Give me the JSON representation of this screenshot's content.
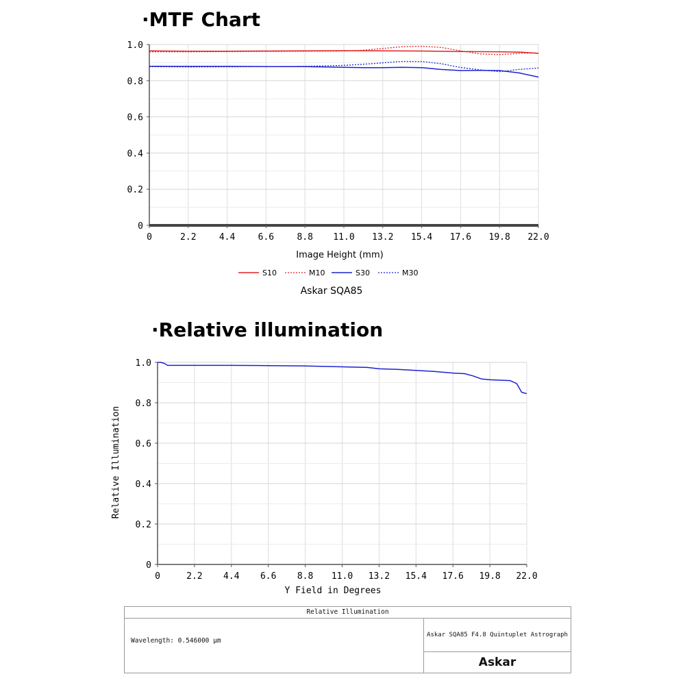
{
  "sections": {
    "mtf_title": "·MTF Chart",
    "ri_title": "·Relative illumination"
  },
  "info_box": {
    "header": "Relative Illumination",
    "wavelength": "Wavelength: 0.546000 µm",
    "lens_name": "Askar SQA85 F4.8 Quintuplet Astrograph",
    "brand_logo": "Askar"
  },
  "chart_data": [
    {
      "type": "line",
      "title": "",
      "subtitle": "Askar SQA85",
      "xlabel": "Image Height (mm)",
      "ylabel": "",
      "xlim": [
        0,
        22
      ],
      "ylim": [
        0,
        1.0
      ],
      "x_ticks": [
        "0",
        "2.2",
        "4.4",
        "6.6",
        "8.8",
        "11.0",
        "13.2",
        "15.4",
        "17.6",
        "19.8",
        "22.0"
      ],
      "y_ticks": [
        "0",
        "0.2",
        "0.4",
        "0.6",
        "0.8",
        "1.0"
      ],
      "grid": true,
      "legend_position": "bottom-center",
      "series": [
        {
          "name": "S10",
          "color": "#e02020",
          "style": "solid",
          "x": [
            0,
            2.2,
            4.4,
            6.6,
            8.8,
            11.0,
            13.2,
            15.4,
            17.6,
            19.8,
            21.0,
            22.0
          ],
          "y": [
            0.965,
            0.963,
            0.963,
            0.964,
            0.965,
            0.966,
            0.965,
            0.964,
            0.961,
            0.96,
            0.958,
            0.951
          ]
        },
        {
          "name": "M10",
          "color": "#e02020",
          "style": "dotted",
          "x": [
            0,
            2.2,
            4.4,
            6.6,
            8.8,
            11.0,
            12.0,
            13.2,
            14.3,
            15.4,
            16.5,
            17.6,
            18.7,
            19.8,
            21.0,
            22.0
          ],
          "y": [
            0.96,
            0.96,
            0.961,
            0.962,
            0.963,
            0.964,
            0.968,
            0.978,
            0.988,
            0.99,
            0.984,
            0.965,
            0.948,
            0.944,
            0.952,
            0.953
          ]
        },
        {
          "name": "S30",
          "color": "#1a22cc",
          "style": "solid",
          "x": [
            0,
            2.2,
            4.4,
            6.6,
            8.8,
            11.0,
            12.1,
            13.2,
            14.3,
            15.4,
            16.5,
            17.6,
            18.7,
            19.8,
            20.9,
            22.0
          ],
          "y": [
            0.88,
            0.879,
            0.879,
            0.878,
            0.878,
            0.874,
            0.872,
            0.872,
            0.874,
            0.872,
            0.862,
            0.856,
            0.857,
            0.856,
            0.843,
            0.82
          ]
        },
        {
          "name": "M30",
          "color": "#1a22cc",
          "style": "dotted",
          "x": [
            0,
            2.2,
            4.4,
            6.6,
            8.8,
            11.0,
            12.1,
            13.2,
            14.3,
            15.4,
            16.5,
            17.6,
            18.7,
            19.8,
            20.9,
            22.0
          ],
          "y": [
            0.878,
            0.876,
            0.877,
            0.878,
            0.879,
            0.885,
            0.891,
            0.899,
            0.907,
            0.906,
            0.894,
            0.873,
            0.86,
            0.85,
            0.862,
            0.87
          ]
        }
      ]
    },
    {
      "type": "line",
      "title": "",
      "xlabel": "Y Field in Degrees",
      "ylabel": "Relative Illumination",
      "xlim": [
        0,
        22
      ],
      "ylim": [
        0,
        1.0
      ],
      "x_ticks": [
        "0",
        "2.2",
        "4.4",
        "6.6",
        "8.8",
        "11.0",
        "13.2",
        "15.4",
        "17.6",
        "19.8",
        "22.0"
      ],
      "y_ticks": [
        "0",
        "0.2",
        "0.4",
        "0.6",
        "0.8",
        "1.0"
      ],
      "grid": true,
      "series": [
        {
          "color": "#1a22cc",
          "style": "solid",
          "x": [
            0,
            0.2,
            0.4,
            0.6,
            2.2,
            4.4,
            6.6,
            8.8,
            11.0,
            12.5,
            13.2,
            14.3,
            15.4,
            16.5,
            17.6,
            18.3,
            18.8,
            19.3,
            19.8,
            20.4,
            21.0,
            21.4,
            21.7,
            22.0
          ],
          "y": [
            1.0,
            1.0,
            0.995,
            0.985,
            0.985,
            0.985,
            0.984,
            0.982,
            0.978,
            0.975,
            0.968,
            0.965,
            0.96,
            0.955,
            0.947,
            0.944,
            0.933,
            0.918,
            0.914,
            0.912,
            0.91,
            0.895,
            0.852,
            0.845
          ]
        }
      ]
    }
  ]
}
